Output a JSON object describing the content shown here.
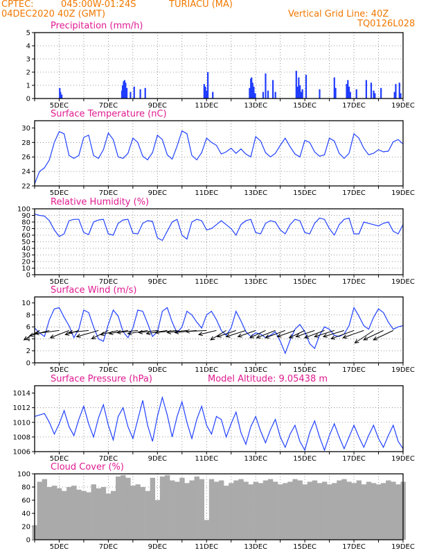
{
  "header": {
    "source": "CPTEC:",
    "coords": "045:00W-01:24S",
    "station": "TURIACU (MA)",
    "run": "04DEC2020 40Z (GMT)",
    "grid_note": "Vertical Grid Line: 40Z",
    "code": "TQ0126L028",
    "model_altitude": "Model Altitude: 9.05438 m"
  },
  "colors": {
    "header": "#f07800",
    "title": "#e01a90",
    "series": "#2040ff",
    "cloud": "#aaaaaa"
  },
  "x_axis": {
    "start_day": 4,
    "end_day": 19,
    "tick_labels": [
      "5DEC",
      "7DEC",
      "9DEC",
      "11DEC",
      "13DEC",
      "15DEC",
      "17DEC",
      "19DEC"
    ]
  },
  "chart_data": [
    {
      "type": "bar",
      "title": "Precipitation (mm/h)",
      "ylim": [
        0,
        5
      ],
      "yticks": [
        "0",
        "1",
        "2",
        "3",
        "4",
        "5"
      ],
      "x": [
        5.02,
        5.05,
        5.1,
        7.55,
        7.58,
        7.62,
        7.66,
        7.7,
        7.75,
        7.9,
        8.05,
        8.3,
        8.5,
        10.9,
        10.95,
        11.0,
        11.05,
        11.25,
        12.75,
        12.8,
        12.83,
        12.87,
        12.92,
        12.98,
        13.3,
        13.4,
        13.5,
        13.7,
        13.8,
        14.65,
        14.7,
        14.75,
        14.8,
        14.85,
        14.9,
        15.05,
        15.6,
        16.2,
        16.25,
        16.7,
        16.75,
        16.8,
        16.85,
        17.1,
        17.5,
        17.7,
        17.8,
        17.85,
        18.1,
        18.65,
        18.7,
        18.85,
        18.9
      ],
      "values": [
        0.8,
        0.5,
        0.3,
        0.6,
        1.0,
        1.3,
        1.4,
        1.2,
        0.8,
        0.5,
        0.9,
        0.7,
        0.8,
        1.1,
        0.9,
        0.6,
        2.0,
        0.5,
        0.8,
        1.5,
        1.6,
        1.2,
        0.9,
        0.4,
        0.5,
        1.9,
        0.6,
        1.4,
        0.5,
        2.1,
        0.9,
        1.6,
        1.0,
        0.5,
        0.7,
        1.8,
        0.7,
        1.6,
        0.8,
        1.1,
        1.4,
        0.9,
        0.5,
        0.7,
        1.4,
        1.2,
        0.6,
        0.4,
        0.8,
        0.5,
        1.1,
        1.2,
        0.4
      ],
      "xlabel": "",
      "ylabel": ""
    },
    {
      "type": "line",
      "title": "Surface Temperature (nC)",
      "ylim": [
        22,
        31
      ],
      "yticks": [
        "22",
        "24",
        "26",
        "28",
        "30"
      ],
      "x": [
        4.0,
        4.2,
        4.4,
        4.6,
        4.8,
        5.0,
        5.2,
        5.4,
        5.6,
        5.8,
        6.0,
        6.2,
        6.4,
        6.6,
        6.8,
        7.0,
        7.2,
        7.4,
        7.6,
        7.8,
        8.0,
        8.2,
        8.4,
        8.6,
        8.8,
        9.0,
        9.2,
        9.4,
        9.6,
        9.8,
        10.0,
        10.2,
        10.4,
        10.6,
        10.8,
        11.0,
        11.2,
        11.4,
        11.6,
        11.8,
        12.0,
        12.2,
        12.4,
        12.6,
        12.8,
        13.0,
        13.2,
        13.4,
        13.6,
        13.8,
        14.0,
        14.2,
        14.4,
        14.6,
        14.8,
        15.0,
        15.2,
        15.4,
        15.6,
        15.8,
        16.0,
        16.2,
        16.4,
        16.6,
        16.8,
        17.0,
        17.2,
        17.4,
        17.6,
        17.8,
        18.0,
        18.2,
        18.4,
        18.6,
        18.8,
        19.0
      ],
      "values": [
        22.3,
        24.0,
        24.5,
        25.6,
        28.0,
        29.5,
        29.2,
        26.2,
        25.8,
        26.2,
        28.7,
        29.0,
        26.2,
        25.8,
        27.0,
        29.3,
        28.4,
        26.0,
        25.8,
        26.5,
        28.6,
        28.0,
        26.1,
        25.6,
        26.6,
        29.0,
        28.4,
        26.3,
        25.7,
        27.5,
        29.6,
        29.2,
        26.2,
        25.6,
        26.6,
        28.6,
        28.0,
        27.6,
        26.4,
        26.7,
        27.2,
        26.5,
        27.1,
        26.4,
        26.0,
        28.8,
        28.2,
        26.6,
        26.0,
        26.5,
        27.6,
        28.6,
        27.4,
        26.4,
        26.0,
        28.3,
        28.0,
        26.7,
        26.1,
        26.3,
        28.6,
        28.2,
        26.5,
        25.8,
        26.5,
        29.2,
        28.6,
        27.2,
        26.3,
        26.5,
        27.0,
        26.7,
        26.8,
        28.1,
        28.4,
        27.8
      ],
      "xlabel": "",
      "ylabel": ""
    },
    {
      "type": "line",
      "title": "Relative Humidity (%)",
      "ylim": [
        0,
        100
      ],
      "yticks": [
        "0",
        "10",
        "20",
        "30",
        "40",
        "50",
        "60",
        "70",
        "80",
        "90",
        "100"
      ],
      "x": [
        4.0,
        4.2,
        4.4,
        4.6,
        4.8,
        5.0,
        5.2,
        5.4,
        5.6,
        5.8,
        6.0,
        6.2,
        6.4,
        6.6,
        6.8,
        7.0,
        7.2,
        7.4,
        7.6,
        7.8,
        8.0,
        8.2,
        8.4,
        8.6,
        8.8,
        9.0,
        9.2,
        9.4,
        9.6,
        9.8,
        10.0,
        10.2,
        10.4,
        10.6,
        10.8,
        11.0,
        11.2,
        11.4,
        11.6,
        11.8,
        12.0,
        12.2,
        12.4,
        12.6,
        12.8,
        13.0,
        13.2,
        13.4,
        13.6,
        13.8,
        14.0,
        14.2,
        14.4,
        14.6,
        14.8,
        15.0,
        15.2,
        15.4,
        15.6,
        15.8,
        16.0,
        16.2,
        16.4,
        16.6,
        16.8,
        17.0,
        17.2,
        17.4,
        17.6,
        17.8,
        18.0,
        18.2,
        18.4,
        18.6,
        18.8,
        19.0
      ],
      "values": [
        92,
        90,
        89,
        82,
        68,
        58,
        62,
        82,
        84,
        84,
        64,
        61,
        80,
        83,
        84,
        62,
        60,
        78,
        83,
        84,
        63,
        62,
        78,
        82,
        81,
        56,
        52,
        66,
        80,
        84,
        60,
        54,
        80,
        84,
        82,
        68,
        70,
        76,
        82,
        76,
        70,
        60,
        76,
        82,
        84,
        64,
        62,
        78,
        82,
        80,
        68,
        62,
        76,
        84,
        82,
        64,
        62,
        78,
        86,
        84,
        70,
        60,
        76,
        84,
        86,
        62,
        62,
        80,
        78,
        76,
        74,
        78,
        80,
        66,
        62,
        76
      ],
      "xlabel": "",
      "ylabel": ""
    },
    {
      "type": "line",
      "title": "Surface Wind (m/s)",
      "ylim": [
        0,
        11
      ],
      "yticks": [
        "0",
        "2",
        "4",
        "6",
        "8",
        "10"
      ],
      "x": [
        4.0,
        4.2,
        4.4,
        4.6,
        4.8,
        5.0,
        5.2,
        5.4,
        5.6,
        5.8,
        6.0,
        6.2,
        6.4,
        6.6,
        6.8,
        7.0,
        7.2,
        7.4,
        7.6,
        7.8,
        8.0,
        8.2,
        8.4,
        8.6,
        8.8,
        9.0,
        9.2,
        9.4,
        9.6,
        9.8,
        10.0,
        10.2,
        10.4,
        10.6,
        10.8,
        11.0,
        11.2,
        11.4,
        11.6,
        11.8,
        12.0,
        12.2,
        12.4,
        12.6,
        12.8,
        13.0,
        13.2,
        13.4,
        13.6,
        13.8,
        14.0,
        14.2,
        14.4,
        14.6,
        14.8,
        15.0,
        15.2,
        15.4,
        15.6,
        15.8,
        16.0,
        16.2,
        16.4,
        16.6,
        16.8,
        17.0,
        17.2,
        17.4,
        17.6,
        17.8,
        18.0,
        18.2,
        18.4,
        18.6,
        18.8,
        19.0
      ],
      "values": [
        5.8,
        5.0,
        4.4,
        7.2,
        9.0,
        9.2,
        7.6,
        6.2,
        4.2,
        5.6,
        8.8,
        8.4,
        6.0,
        4.0,
        3.6,
        6.4,
        8.8,
        7.8,
        5.2,
        4.2,
        5.8,
        8.8,
        8.6,
        6.6,
        4.4,
        5.2,
        8.6,
        9.2,
        6.8,
        5.0,
        6.0,
        8.6,
        8.0,
        6.8,
        5.8,
        8.0,
        8.6,
        7.2,
        5.4,
        4.6,
        5.8,
        8.6,
        7.0,
        5.2,
        4.4,
        5.0,
        4.8,
        4.2,
        4.6,
        5.2,
        3.6,
        1.6,
        3.8,
        5.6,
        6.4,
        5.2,
        3.2,
        2.4,
        4.6,
        6.0,
        5.6,
        4.6,
        4.4,
        4.8,
        6.2,
        9.2,
        7.8,
        6.2,
        5.6,
        7.6,
        9.0,
        8.4,
        6.8,
        5.6,
        6.0,
        6.2
      ],
      "vectors": {
        "x": [
          4.2,
          4.6,
          5.0,
          5.4,
          5.8,
          6.2,
          6.6,
          7.0,
          7.4,
          7.8,
          8.2,
          8.6,
          9.0,
          9.4,
          9.8,
          10.2,
          10.6,
          11.0,
          11.4,
          11.8,
          12.2,
          12.6,
          13.0,
          13.4,
          13.8,
          14.2,
          14.6,
          15.0,
          15.4,
          15.8,
          16.2,
          16.6,
          17.0,
          17.4,
          17.8,
          18.2,
          18.6
        ],
        "u": [
          -3.0,
          -3.8,
          -4.6,
          -3.6,
          -2.6,
          -3.8,
          -4.2,
          -3.2,
          -3.4,
          -3.6,
          -4.0,
          -3.8,
          -3.6,
          -4.0,
          -4.2,
          -3.8,
          -4.2,
          -4.0,
          -3.4,
          -3.0,
          -3.6,
          -3.8,
          -3.4,
          -3.0,
          -3.6,
          -3.8,
          -3.4,
          -3.0,
          -3.6,
          -3.8,
          -3.8,
          -4.0,
          -4.4,
          -4.0,
          -3.6,
          -3.8,
          -3.8
        ],
        "v": [
          -1.8,
          -1.0,
          -0.6,
          -1.4,
          -0.8,
          -0.4,
          -1.2,
          -1.6,
          -0.8,
          -0.6,
          -0.4,
          -0.6,
          -0.4,
          -0.6,
          -0.4,
          -0.4,
          -0.4,
          -0.2,
          -0.8,
          -1.8,
          -1.2,
          -1.2,
          -1.2,
          -1.4,
          -1.4,
          -1.4,
          -1.2,
          -1.4,
          -1.2,
          -1.4,
          -1.2,
          -1.2,
          -1.6,
          -1.4,
          -2.4,
          -1.8,
          -1.8
        ]
      },
      "xlabel": "",
      "ylabel": ""
    },
    {
      "type": "line",
      "title": "Surface Pressure (hPa)",
      "ylim": [
        1006,
        1015
      ],
      "yticks": [
        "1006",
        "1008",
        "1010",
        "1012",
        "1014"
      ],
      "x": [
        4.0,
        4.2,
        4.4,
        4.6,
        4.8,
        5.0,
        5.2,
        5.4,
        5.6,
        5.8,
        6.0,
        6.2,
        6.4,
        6.6,
        6.8,
        7.0,
        7.2,
        7.4,
        7.6,
        7.8,
        8.0,
        8.2,
        8.4,
        8.6,
        8.8,
        9.0,
        9.2,
        9.4,
        9.6,
        9.8,
        10.0,
        10.2,
        10.4,
        10.6,
        10.8,
        11.0,
        11.2,
        11.4,
        11.6,
        11.8,
        12.0,
        12.2,
        12.4,
        12.6,
        12.8,
        13.0,
        13.2,
        13.4,
        13.6,
        13.8,
        14.0,
        14.2,
        14.4,
        14.6,
        14.8,
        15.0,
        15.2,
        15.4,
        15.6,
        15.8,
        16.0,
        16.2,
        16.4,
        16.6,
        16.8,
        17.0,
        17.2,
        17.4,
        17.6,
        17.8,
        18.0,
        18.2,
        18.4,
        18.6,
        18.8,
        19.0
      ],
      "values": [
        1010.8,
        1011.0,
        1011.2,
        1010.0,
        1008.4,
        1009.8,
        1011.6,
        1009.4,
        1008.2,
        1010.4,
        1012.2,
        1009.8,
        1008.0,
        1010.6,
        1012.4,
        1009.6,
        1007.6,
        1010.8,
        1012.0,
        1009.4,
        1007.8,
        1010.4,
        1013.0,
        1009.6,
        1007.4,
        1010.8,
        1013.4,
        1011.0,
        1008.0,
        1010.8,
        1012.8,
        1010.0,
        1007.8,
        1010.4,
        1012.2,
        1009.6,
        1008.4,
        1010.8,
        1010.4,
        1008.0,
        1009.8,
        1011.4,
        1008.6,
        1007.0,
        1009.4,
        1010.8,
        1008.8,
        1007.2,
        1009.0,
        1010.4,
        1008.0,
        1006.6,
        1008.4,
        1009.6,
        1007.4,
        1006.2,
        1008.6,
        1010.2,
        1008.0,
        1006.2,
        1008.2,
        1009.8,
        1008.0,
        1006.4,
        1008.0,
        1009.6,
        1008.0,
        1006.6,
        1008.2,
        1009.6,
        1007.8,
        1006.6,
        1008.2,
        1009.6,
        1007.4,
        1006.4
      ],
      "xlabel": "",
      "ylabel": ""
    },
    {
      "type": "area",
      "title": "Cloud Cover (%)",
      "ylim": [
        0,
        100
      ],
      "yticks": [
        "0",
        "20",
        "40",
        "60",
        "80",
        "100"
      ],
      "x": [
        4.0,
        4.2,
        4.4,
        4.6,
        4.8,
        5.0,
        5.2,
        5.4,
        5.6,
        5.8,
        6.0,
        6.2,
        6.4,
        6.6,
        6.8,
        7.0,
        7.2,
        7.4,
        7.6,
        7.8,
        8.0,
        8.2,
        8.4,
        8.6,
        8.8,
        9.0,
        9.2,
        9.4,
        9.6,
        9.8,
        10.0,
        10.2,
        10.4,
        10.6,
        10.8,
        11.0,
        11.2,
        11.4,
        11.6,
        11.8,
        12.0,
        12.2,
        12.4,
        12.6,
        12.8,
        13.0,
        13.2,
        13.4,
        13.6,
        13.8,
        14.0,
        14.2,
        14.4,
        14.6,
        14.8,
        15.0,
        15.2,
        15.4,
        15.6,
        15.8,
        16.0,
        16.2,
        16.4,
        16.6,
        16.8,
        17.0,
        17.2,
        17.4,
        17.6,
        17.8,
        18.0,
        18.2,
        18.4,
        18.6,
        18.8,
        19.0
      ],
      "values": [
        22,
        88,
        92,
        80,
        82,
        78,
        74,
        80,
        82,
        76,
        74,
        72,
        84,
        78,
        80,
        70,
        74,
        96,
        98,
        94,
        82,
        84,
        80,
        74,
        94,
        60,
        96,
        98,
        90,
        88,
        94,
        86,
        90,
        96,
        92,
        30,
        92,
        88,
        90,
        82,
        86,
        90,
        92,
        88,
        84,
        88,
        86,
        90,
        92,
        88,
        84,
        86,
        88,
        92,
        90,
        84,
        88,
        90,
        86,
        88,
        84,
        86,
        90,
        92,
        88,
        86,
        90,
        84,
        88,
        86,
        84,
        86,
        90,
        88,
        84,
        88
      ],
      "xlabel": "",
      "ylabel": ""
    }
  ]
}
